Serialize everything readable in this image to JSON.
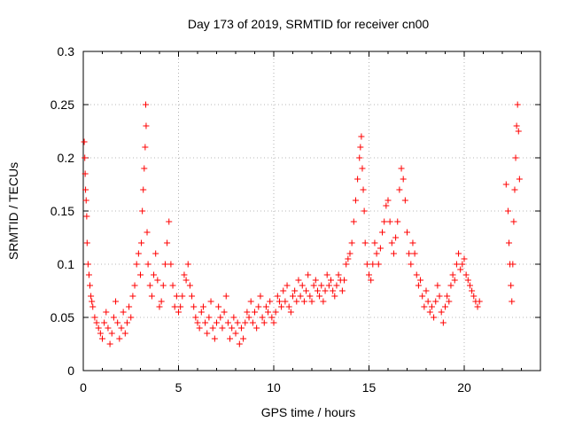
{
  "chart_data": {
    "type": "scatter",
    "title": "Day 173 of 2019, SRMTID for receiver cn00",
    "xlabel": "GPS time / hours",
    "ylabel": "SRMTID / TECUs",
    "xlim": [
      0,
      24
    ],
    "ylim": [
      0,
      0.3
    ],
    "xticks": [
      0,
      5,
      10,
      15,
      20
    ],
    "xtick_labels": [
      "0",
      "5",
      "10",
      "15",
      "20"
    ],
    "yticks": [
      0,
      0.05,
      0.1,
      0.15,
      0.2,
      0.25,
      0.3
    ],
    "ytick_labels": [
      "0",
      "0.05",
      "0.1",
      "0.15",
      "0.2",
      "0.25",
      "0.3"
    ],
    "grid": true,
    "marker": "+",
    "series": [
      {
        "name": "SRMTID",
        "color": "#ff0000",
        "points": [
          [
            0.05,
            0.215
          ],
          [
            0.08,
            0.2
          ],
          [
            0.1,
            0.185
          ],
          [
            0.12,
            0.17
          ],
          [
            0.15,
            0.16
          ],
          [
            0.18,
            0.145
          ],
          [
            0.2,
            0.12
          ],
          [
            0.25,
            0.1
          ],
          [
            0.3,
            0.09
          ],
          [
            0.35,
            0.08
          ],
          [
            0.4,
            0.07
          ],
          [
            0.45,
            0.065
          ],
          [
            0.5,
            0.06
          ],
          [
            0.6,
            0.05
          ],
          [
            0.7,
            0.045
          ],
          [
            0.8,
            0.04
          ],
          [
            0.9,
            0.035
          ],
          [
            1.0,
            0.03
          ],
          [
            1.1,
            0.045
          ],
          [
            1.2,
            0.055
          ],
          [
            1.3,
            0.04
          ],
          [
            1.4,
            0.025
          ],
          [
            1.5,
            0.035
          ],
          [
            1.6,
            0.05
          ],
          [
            1.7,
            0.065
          ],
          [
            1.8,
            0.045
          ],
          [
            1.9,
            0.03
          ],
          [
            2.0,
            0.04
          ],
          [
            2.1,
            0.055
          ],
          [
            2.2,
            0.035
          ],
          [
            2.3,
            0.045
          ],
          [
            2.4,
            0.06
          ],
          [
            2.5,
            0.05
          ],
          [
            2.6,
            0.07
          ],
          [
            2.7,
            0.08
          ],
          [
            2.8,
            0.1
          ],
          [
            2.9,
            0.11
          ],
          [
            3.0,
            0.09
          ],
          [
            3.05,
            0.12
          ],
          [
            3.1,
            0.15
          ],
          [
            3.15,
            0.17
          ],
          [
            3.2,
            0.19
          ],
          [
            3.25,
            0.21
          ],
          [
            3.28,
            0.25
          ],
          [
            3.3,
            0.23
          ],
          [
            3.35,
            0.13
          ],
          [
            3.4,
            0.1
          ],
          [
            3.5,
            0.08
          ],
          [
            3.6,
            0.07
          ],
          [
            3.7,
            0.09
          ],
          [
            3.8,
            0.11
          ],
          [
            3.9,
            0.085
          ],
          [
            4.0,
            0.06
          ],
          [
            4.1,
            0.065
          ],
          [
            4.2,
            0.08
          ],
          [
            4.3,
            0.1
          ],
          [
            4.4,
            0.12
          ],
          [
            4.5,
            0.14
          ],
          [
            4.6,
            0.1
          ],
          [
            4.7,
            0.08
          ],
          [
            4.8,
            0.06
          ],
          [
            4.9,
            0.07
          ],
          [
            5.0,
            0.055
          ],
          [
            5.1,
            0.06
          ],
          [
            5.2,
            0.07
          ],
          [
            5.3,
            0.09
          ],
          [
            5.4,
            0.085
          ],
          [
            5.5,
            0.1
          ],
          [
            5.6,
            0.08
          ],
          [
            5.7,
            0.07
          ],
          [
            5.8,
            0.06
          ],
          [
            5.9,
            0.05
          ],
          [
            6.0,
            0.045
          ],
          [
            6.1,
            0.04
          ],
          [
            6.2,
            0.055
          ],
          [
            6.3,
            0.06
          ],
          [
            6.4,
            0.045
          ],
          [
            6.5,
            0.035
          ],
          [
            6.6,
            0.05
          ],
          [
            6.7,
            0.065
          ],
          [
            6.8,
            0.04
          ],
          [
            6.9,
            0.03
          ],
          [
            7.0,
            0.045
          ],
          [
            7.1,
            0.06
          ],
          [
            7.2,
            0.05
          ],
          [
            7.3,
            0.04
          ],
          [
            7.4,
            0.055
          ],
          [
            7.5,
            0.07
          ],
          [
            7.6,
            0.045
          ],
          [
            7.7,
            0.03
          ],
          [
            7.8,
            0.04
          ],
          [
            7.9,
            0.05
          ],
          [
            8.0,
            0.035
          ],
          [
            8.1,
            0.045
          ],
          [
            8.2,
            0.025
          ],
          [
            8.3,
            0.04
          ],
          [
            8.4,
            0.03
          ],
          [
            8.5,
            0.045
          ],
          [
            8.6,
            0.055
          ],
          [
            8.7,
            0.05
          ],
          [
            8.8,
            0.065
          ],
          [
            8.9,
            0.045
          ],
          [
            9.0,
            0.055
          ],
          [
            9.1,
            0.04
          ],
          [
            9.2,
            0.06
          ],
          [
            9.3,
            0.07
          ],
          [
            9.4,
            0.05
          ],
          [
            9.5,
            0.045
          ],
          [
            9.6,
            0.06
          ],
          [
            9.7,
            0.055
          ],
          [
            9.8,
            0.065
          ],
          [
            9.9,
            0.05
          ],
          [
            10.0,
            0.045
          ],
          [
            10.1,
            0.055
          ],
          [
            10.2,
            0.07
          ],
          [
            10.3,
            0.065
          ],
          [
            10.4,
            0.06
          ],
          [
            10.5,
            0.075
          ],
          [
            10.6,
            0.065
          ],
          [
            10.7,
            0.08
          ],
          [
            10.8,
            0.06
          ],
          [
            10.9,
            0.055
          ],
          [
            11.0,
            0.07
          ],
          [
            11.1,
            0.075
          ],
          [
            11.2,
            0.065
          ],
          [
            11.3,
            0.085
          ],
          [
            11.4,
            0.07
          ],
          [
            11.5,
            0.08
          ],
          [
            11.6,
            0.065
          ],
          [
            11.7,
            0.075
          ],
          [
            11.8,
            0.09
          ],
          [
            11.9,
            0.07
          ],
          [
            12.0,
            0.065
          ],
          [
            12.1,
            0.08
          ],
          [
            12.2,
            0.085
          ],
          [
            12.3,
            0.075
          ],
          [
            12.4,
            0.07
          ],
          [
            12.5,
            0.08
          ],
          [
            12.6,
            0.065
          ],
          [
            12.7,
            0.075
          ],
          [
            12.8,
            0.09
          ],
          [
            12.9,
            0.08
          ],
          [
            13.0,
            0.085
          ],
          [
            13.1,
            0.075
          ],
          [
            13.2,
            0.07
          ],
          [
            13.3,
            0.08
          ],
          [
            13.4,
            0.09
          ],
          [
            13.5,
            0.085
          ],
          [
            13.6,
            0.075
          ],
          [
            13.7,
            0.085
          ],
          [
            13.8,
            0.1
          ],
          [
            13.9,
            0.105
          ],
          [
            14.0,
            0.11
          ],
          [
            14.1,
            0.12
          ],
          [
            14.2,
            0.14
          ],
          [
            14.3,
            0.16
          ],
          [
            14.4,
            0.18
          ],
          [
            14.5,
            0.2
          ],
          [
            14.55,
            0.21
          ],
          [
            14.6,
            0.22
          ],
          [
            14.65,
            0.19
          ],
          [
            14.7,
            0.17
          ],
          [
            14.75,
            0.15
          ],
          [
            14.8,
            0.12
          ],
          [
            14.9,
            0.1
          ],
          [
            15.0,
            0.09
          ],
          [
            15.1,
            0.085
          ],
          [
            15.2,
            0.1
          ],
          [
            15.3,
            0.12
          ],
          [
            15.4,
            0.11
          ],
          [
            15.5,
            0.1
          ],
          [
            15.6,
            0.115
          ],
          [
            15.7,
            0.13
          ],
          [
            15.8,
            0.14
          ],
          [
            15.9,
            0.155
          ],
          [
            16.0,
            0.16
          ],
          [
            16.1,
            0.14
          ],
          [
            16.2,
            0.12
          ],
          [
            16.3,
            0.11
          ],
          [
            16.4,
            0.125
          ],
          [
            16.5,
            0.14
          ],
          [
            16.6,
            0.17
          ],
          [
            16.7,
            0.19
          ],
          [
            16.8,
            0.18
          ],
          [
            16.9,
            0.16
          ],
          [
            17.0,
            0.13
          ],
          [
            17.1,
            0.11
          ],
          [
            17.2,
            0.1
          ],
          [
            17.3,
            0.12
          ],
          [
            17.4,
            0.11
          ],
          [
            17.5,
            0.09
          ],
          [
            17.6,
            0.08
          ],
          [
            17.7,
            0.085
          ],
          [
            17.8,
            0.07
          ],
          [
            17.9,
            0.06
          ],
          [
            18.0,
            0.075
          ],
          [
            18.1,
            0.065
          ],
          [
            18.2,
            0.055
          ],
          [
            18.3,
            0.06
          ],
          [
            18.4,
            0.05
          ],
          [
            18.5,
            0.065
          ],
          [
            18.6,
            0.08
          ],
          [
            18.7,
            0.07
          ],
          [
            18.8,
            0.055
          ],
          [
            18.9,
            0.045
          ],
          [
            19.0,
            0.06
          ],
          [
            19.1,
            0.07
          ],
          [
            19.2,
            0.065
          ],
          [
            19.3,
            0.08
          ],
          [
            19.4,
            0.09
          ],
          [
            19.5,
            0.085
          ],
          [
            19.6,
            0.1
          ],
          [
            19.7,
            0.11
          ],
          [
            19.8,
            0.095
          ],
          [
            19.9,
            0.1
          ],
          [
            20.0,
            0.105
          ],
          [
            20.1,
            0.09
          ],
          [
            20.2,
            0.085
          ],
          [
            20.3,
            0.08
          ],
          [
            20.4,
            0.075
          ],
          [
            20.5,
            0.07
          ],
          [
            20.6,
            0.065
          ],
          [
            20.7,
            0.06
          ],
          [
            20.8,
            0.065
          ],
          [
            22.2,
            0.175
          ],
          [
            22.3,
            0.15
          ],
          [
            22.35,
            0.12
          ],
          [
            22.4,
            0.1
          ],
          [
            22.45,
            0.08
          ],
          [
            22.5,
            0.065
          ],
          [
            22.55,
            0.1
          ],
          [
            22.6,
            0.14
          ],
          [
            22.65,
            0.17
          ],
          [
            22.7,
            0.2
          ],
          [
            22.75,
            0.23
          ],
          [
            22.8,
            0.25
          ],
          [
            22.85,
            0.225
          ],
          [
            22.9,
            0.18
          ]
        ]
      }
    ]
  }
}
